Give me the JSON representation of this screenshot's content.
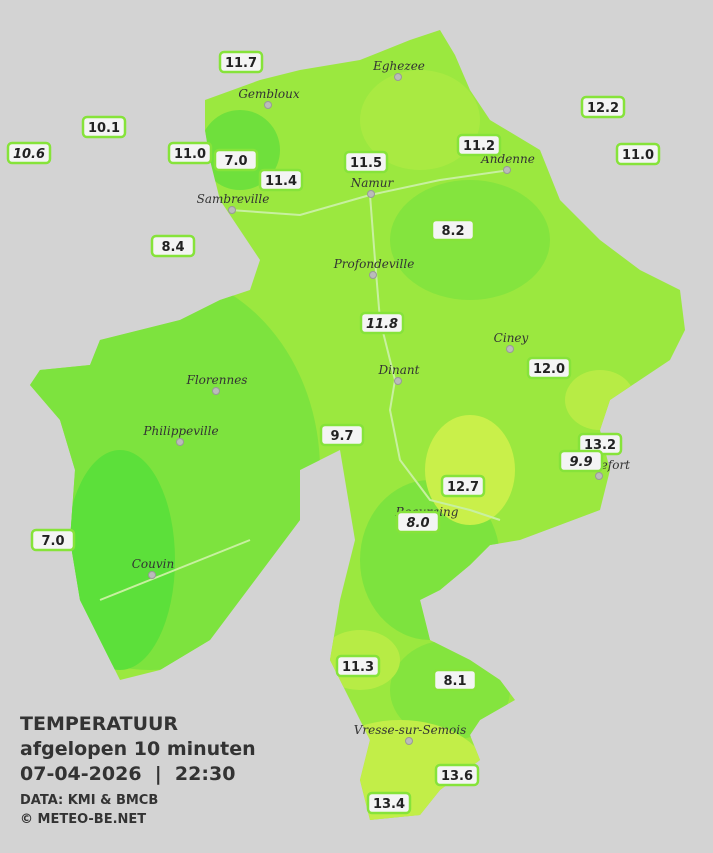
{
  "legend": {
    "title": "TEMPERATUUR",
    "subtitle": "afgelopen 10 minuten",
    "timestamp": "07-04-2026  |  22:30",
    "source": "DATA: KMI & BMCB",
    "copyright": "© METEO-BE.NET"
  },
  "cities": [
    {
      "name": "Eghezee"
    },
    {
      "name": "Gembloux"
    },
    {
      "name": "Andenne"
    },
    {
      "name": "Namur"
    },
    {
      "name": "Sambreville"
    },
    {
      "name": "Profondeville"
    },
    {
      "name": "Ciney"
    },
    {
      "name": "Dinant"
    },
    {
      "name": "Florennes"
    },
    {
      "name": "Philippeville"
    },
    {
      "name": "Rochefort"
    },
    {
      "name": "Beauraing"
    },
    {
      "name": "Couvin"
    },
    {
      "name": "Vresse-sur-Semois"
    }
  ],
  "stations": [
    {
      "label": "11.7"
    },
    {
      "label": "10.1"
    },
    {
      "label": "10.6"
    },
    {
      "label": "11.0"
    },
    {
      "label": "7.0"
    },
    {
      "label": "11.4"
    },
    {
      "label": "11.5"
    },
    {
      "label": "11.2"
    },
    {
      "label": "12.2"
    },
    {
      "label": "11.0"
    },
    {
      "label": "8.4"
    },
    {
      "label": "8.2"
    },
    {
      "label": "11.8"
    },
    {
      "label": "12.0"
    },
    {
      "label": "9.7"
    },
    {
      "label": "13.2"
    },
    {
      "label": "9.9"
    },
    {
      "label": "12.7"
    },
    {
      "label": "8.0"
    },
    {
      "label": "7.0"
    },
    {
      "label": "11.3"
    },
    {
      "label": "8.1"
    },
    {
      "label": "13.6"
    },
    {
      "label": "13.4"
    }
  ]
}
